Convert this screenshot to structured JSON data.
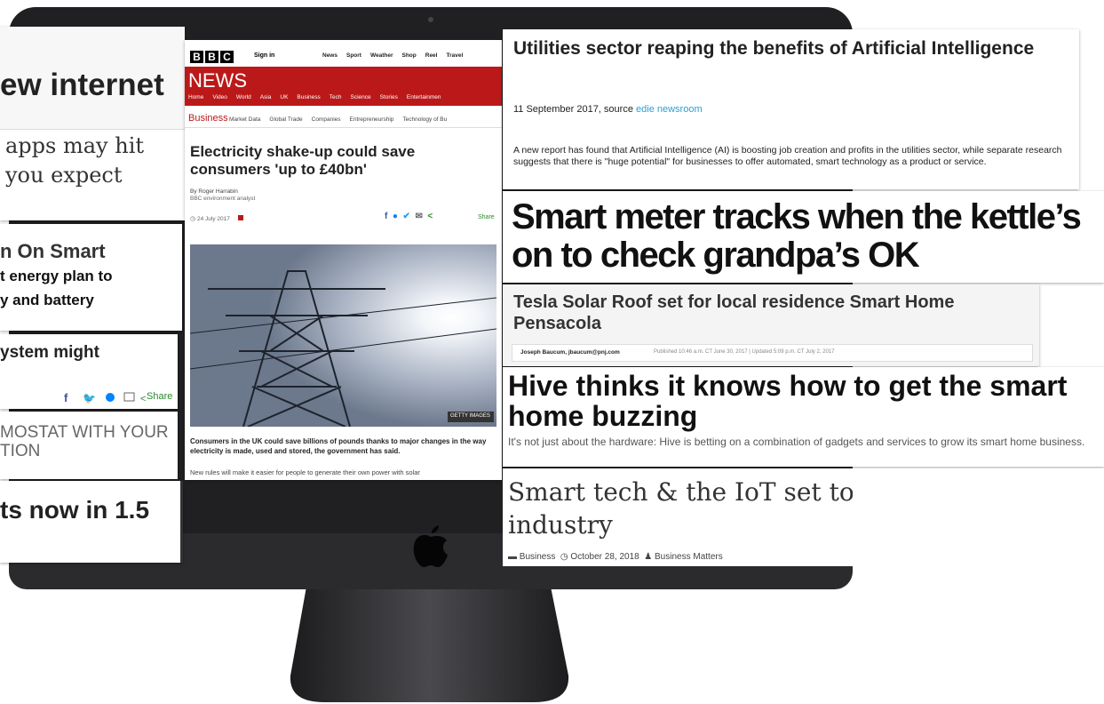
{
  "left_clippings": [
    {
      "headline": "ew internet",
      "lines": [
        "apps may hit",
        "you expect"
      ]
    },
    {
      "headline": "n On Smart",
      "lines": [
        "t energy plan to",
        "y and battery"
      ]
    },
    {
      "headline": "ystem might",
      "share": "Share"
    },
    {
      "lines": [
        "MOSTAT WITH YOUR",
        "TION"
      ]
    },
    {
      "headline": "ts now in 1.5"
    }
  ],
  "bbc": {
    "logo": [
      "B",
      "B",
      "C"
    ],
    "sign_in": "Sign in",
    "top_nav": [
      "News",
      "Sport",
      "Weather",
      "Shop",
      "Reel",
      "Travel"
    ],
    "section": "NEWS",
    "main_nav": [
      "Home",
      "Video",
      "World",
      "Asia",
      "UK",
      "Business",
      "Tech",
      "Science",
      "Stories",
      "Entertainmen"
    ],
    "subnav": [
      "Business",
      "Market Data",
      "Global Trade",
      "Companies",
      "Entrepreneurship",
      "Technology of Bu"
    ],
    "headline": "Electricity shake-up could save consumers 'up to £40bn'",
    "byline": [
      "By Roger Harrabin",
      "BBC environment analyst"
    ],
    "date": "24 July 2017",
    "share": "Share",
    "photo_credit": "GETTY IMAGES",
    "lead": "Consumers in the UK could save billions of pounds thanks to major changes in the way electricity is made, used and stored, the government has said.",
    "body": "New rules will make it easier for people to generate their own power with solar"
  },
  "utilities": {
    "headline": "Utilities sector reaping the benefits of Artificial Intelligence",
    "dateline": "11 September 2017, source",
    "source": "edie newsroom",
    "summary": "A new report has found that Artificial Intelligence (AI) is boosting job creation and profits in the utilities sector, while separate research suggests that there is \"huge potential\" for businesses to offer automated, smart technology as a product or service."
  },
  "smart_meter": {
    "headline": "Smart meter tracks when the kettle’s on to check grandpa’s OK"
  },
  "tesla": {
    "headline": "Tesla Solar Roof set for local residence Smart Home Pensacola",
    "author": "Joseph Baucum, jbaucum@pnj.com",
    "timestamp": "Published 10:46 a.m. CT June 30, 2017 | Updated 5:09 p.m. CT July 2, 2017"
  },
  "hive": {
    "headline": "Hive thinks it knows how to get the smart home buzzing",
    "standfirst": "It's not just about the hardware: Hive is betting on a combination of gadgets and services to grow its smart home business."
  },
  "smart_tech": {
    "headline": "Smart tech & the IoT set to change the face of industry",
    "category": "Business",
    "date": "October 28, 2018",
    "author": "Business Matters"
  }
}
